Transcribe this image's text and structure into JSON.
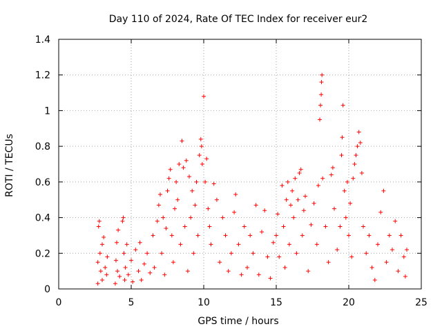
{
  "chart_data": {
    "type": "scatter",
    "title": "Day 110 of 2024, Rate Of TEC Index for receiver eur2",
    "xlabel": "GPS time / hours",
    "ylabel": "ROTI / TECUs",
    "xlim": [
      0,
      25
    ],
    "ylim": [
      0,
      1.4
    ],
    "x_ticks": [
      "0",
      "5",
      "10",
      "15",
      "20",
      "25"
    ],
    "y_ticks": [
      "0",
      "0.2",
      "0.4",
      "0.6",
      "0.8",
      "1",
      "1.2",
      "1.4"
    ],
    "grid": true,
    "marker": "+",
    "color": "#ff0000",
    "series": [
      {
        "points": [
          [
            2.7,
            0.03
          ],
          [
            2.7,
            0.15
          ],
          [
            2.75,
            0.35
          ],
          [
            2.8,
            0.38
          ],
          [
            2.85,
            0.2
          ],
          [
            2.9,
            0.1
          ],
          [
            3.0,
            0.05
          ],
          [
            3.0,
            0.25
          ],
          [
            3.1,
            0.29
          ],
          [
            3.2,
            0.12
          ],
          [
            3.3,
            0.08
          ],
          [
            3.35,
            0.18
          ],
          [
            3.9,
            0.03
          ],
          [
            3.95,
            0.16
          ],
          [
            4.0,
            0.26
          ],
          [
            4.05,
            0.1
          ],
          [
            4.1,
            0.33
          ],
          [
            4.2,
            0.07
          ],
          [
            4.4,
            0.38
          ],
          [
            4.45,
            0.4
          ],
          [
            4.5,
            0.2
          ],
          [
            4.55,
            0.05
          ],
          [
            4.6,
            0.12
          ],
          [
            4.7,
            0.25
          ],
          [
            4.8,
            0.08
          ],
          [
            5.0,
            0.16
          ],
          [
            5.1,
            0.04
          ],
          [
            5.3,
            0.22
          ],
          [
            5.5,
            0.1
          ],
          [
            5.6,
            0.26
          ],
          [
            5.7,
            0.05
          ],
          [
            5.9,
            0.14
          ],
          [
            6.1,
            0.2
          ],
          [
            6.3,
            0.09
          ],
          [
            6.5,
            0.3
          ],
          [
            6.6,
            0.12
          ],
          [
            6.8,
            0.38
          ],
          [
            6.9,
            0.47
          ],
          [
            7.0,
            0.53
          ],
          [
            7.1,
            0.2
          ],
          [
            7.2,
            0.4
          ],
          [
            7.3,
            0.08
          ],
          [
            7.4,
            0.34
          ],
          [
            7.5,
            0.55
          ],
          [
            7.6,
            0.62
          ],
          [
            7.7,
            0.67
          ],
          [
            7.8,
            0.3
          ],
          [
            7.9,
            0.15
          ],
          [
            8.0,
            0.45
          ],
          [
            8.1,
            0.6
          ],
          [
            8.2,
            0.5
          ],
          [
            8.3,
            0.7
          ],
          [
            8.4,
            0.25
          ],
          [
            8.5,
            0.83
          ],
          [
            8.6,
            0.68
          ],
          [
            8.7,
            0.35
          ],
          [
            8.8,
            0.72
          ],
          [
            8.9,
            0.1
          ],
          [
            9.0,
            0.63
          ],
          [
            9.1,
            0.4
          ],
          [
            9.2,
            0.55
          ],
          [
            9.3,
            0.2
          ],
          [
            9.4,
            0.47
          ],
          [
            9.5,
            0.6
          ],
          [
            9.6,
            0.3
          ],
          [
            9.7,
            0.75
          ],
          [
            9.8,
            0.84
          ],
          [
            9.85,
            0.8
          ],
          [
            9.9,
            0.7
          ],
          [
            10.0,
            1.08
          ],
          [
            10.1,
            0.6
          ],
          [
            10.2,
            0.73
          ],
          [
            10.3,
            0.45
          ],
          [
            10.4,
            0.35
          ],
          [
            10.5,
            0.25
          ],
          [
            10.7,
            0.59
          ],
          [
            10.9,
            0.5
          ],
          [
            11.1,
            0.15
          ],
          [
            11.3,
            0.4
          ],
          [
            11.5,
            0.3
          ],
          [
            11.7,
            0.1
          ],
          [
            11.9,
            0.2
          ],
          [
            12.1,
            0.43
          ],
          [
            12.2,
            0.53
          ],
          [
            12.4,
            0.25
          ],
          [
            12.6,
            0.08
          ],
          [
            12.8,
            0.35
          ],
          [
            13.0,
            0.12
          ],
          [
            13.2,
            0.3
          ],
          [
            13.4,
            0.2
          ],
          [
            13.6,
            0.47
          ],
          [
            13.8,
            0.08
          ],
          [
            14.0,
            0.32
          ],
          [
            14.2,
            0.44
          ],
          [
            14.4,
            0.18
          ],
          [
            14.6,
            0.06
          ],
          [
            14.8,
            0.26
          ],
          [
            15.0,
            0.3
          ],
          [
            15.1,
            0.42
          ],
          [
            15.2,
            0.18
          ],
          [
            15.4,
            0.58
          ],
          [
            15.5,
            0.35
          ],
          [
            15.6,
            0.12
          ],
          [
            15.7,
            0.5
          ],
          [
            15.8,
            0.6
          ],
          [
            15.9,
            0.25
          ],
          [
            16.0,
            0.47
          ],
          [
            16.1,
            0.55
          ],
          [
            16.2,
            0.4
          ],
          [
            16.3,
            0.62
          ],
          [
            16.4,
            0.2
          ],
          [
            16.5,
            0.5
          ],
          [
            16.6,
            0.65
          ],
          [
            16.7,
            0.67
          ],
          [
            16.8,
            0.3
          ],
          [
            16.9,
            0.44
          ],
          [
            17.0,
            0.52
          ],
          [
            17.2,
            0.1
          ],
          [
            17.4,
            0.36
          ],
          [
            17.6,
            0.48
          ],
          [
            17.8,
            0.25
          ],
          [
            17.9,
            0.58
          ],
          [
            18.0,
            0.95
          ],
          [
            18.05,
            1.03
          ],
          [
            18.1,
            1.09
          ],
          [
            18.12,
            1.16
          ],
          [
            18.15,
            1.2
          ],
          [
            18.2,
            0.62
          ],
          [
            18.4,
            0.35
          ],
          [
            18.6,
            0.15
          ],
          [
            18.8,
            0.64
          ],
          [
            18.9,
            0.68
          ],
          [
            19.0,
            0.45
          ],
          [
            19.2,
            0.22
          ],
          [
            19.4,
            0.35
          ],
          [
            19.5,
            0.75
          ],
          [
            19.55,
            0.85
          ],
          [
            19.6,
            1.03
          ],
          [
            19.7,
            0.55
          ],
          [
            19.8,
            0.4
          ],
          [
            19.9,
            0.6
          ],
          [
            20.0,
            0.3
          ],
          [
            20.1,
            0.48
          ],
          [
            20.2,
            0.18
          ],
          [
            20.3,
            0.62
          ],
          [
            20.4,
            0.7
          ],
          [
            20.5,
            0.75
          ],
          [
            20.6,
            0.8
          ],
          [
            20.7,
            0.88
          ],
          [
            20.8,
            0.82
          ],
          [
            20.9,
            0.65
          ],
          [
            21.0,
            0.35
          ],
          [
            21.2,
            0.2
          ],
          [
            21.4,
            0.3
          ],
          [
            21.6,
            0.12
          ],
          [
            21.8,
            0.05
          ],
          [
            22.0,
            0.25
          ],
          [
            22.2,
            0.43
          ],
          [
            22.4,
            0.55
          ],
          [
            22.6,
            0.15
          ],
          [
            22.8,
            0.3
          ],
          [
            23.0,
            0.22
          ],
          [
            23.2,
            0.38
          ],
          [
            23.4,
            0.1
          ],
          [
            23.6,
            0.3
          ],
          [
            23.8,
            0.18
          ],
          [
            23.9,
            0.07
          ],
          [
            24.0,
            0.22
          ]
        ]
      }
    ]
  }
}
